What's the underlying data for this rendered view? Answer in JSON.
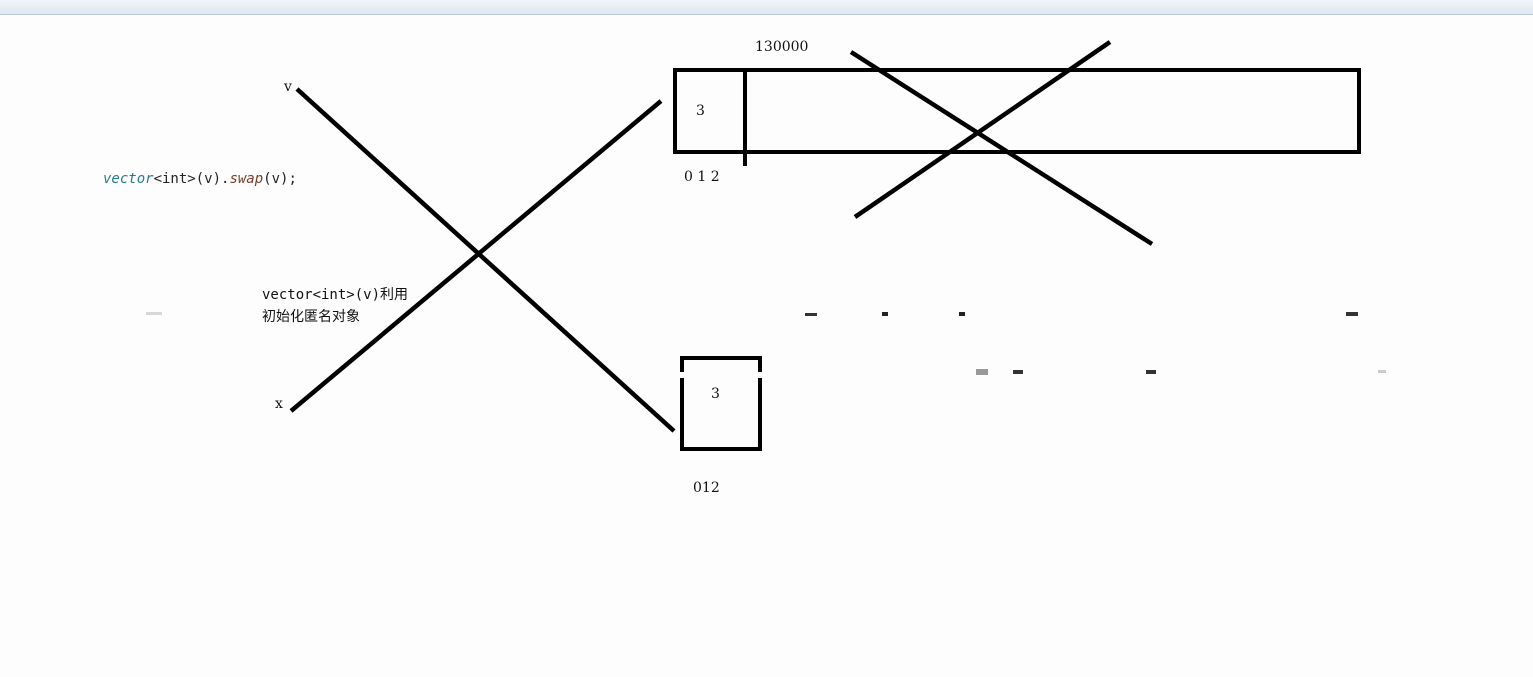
{
  "code_line": {
    "type_kw": "vector",
    "rest_a": "<int>(v).",
    "method": "swap",
    "rest_b": "(v);"
  },
  "labels": {
    "v": "v",
    "x": "x",
    "big_count": "130000",
    "big_cell_value": "3",
    "big_indices": "0 1 2",
    "small_cell_value": "3",
    "small_indices": "012"
  },
  "note": {
    "line1": "vector<int>(v)利用",
    "line2": "初始化匿名对象"
  }
}
